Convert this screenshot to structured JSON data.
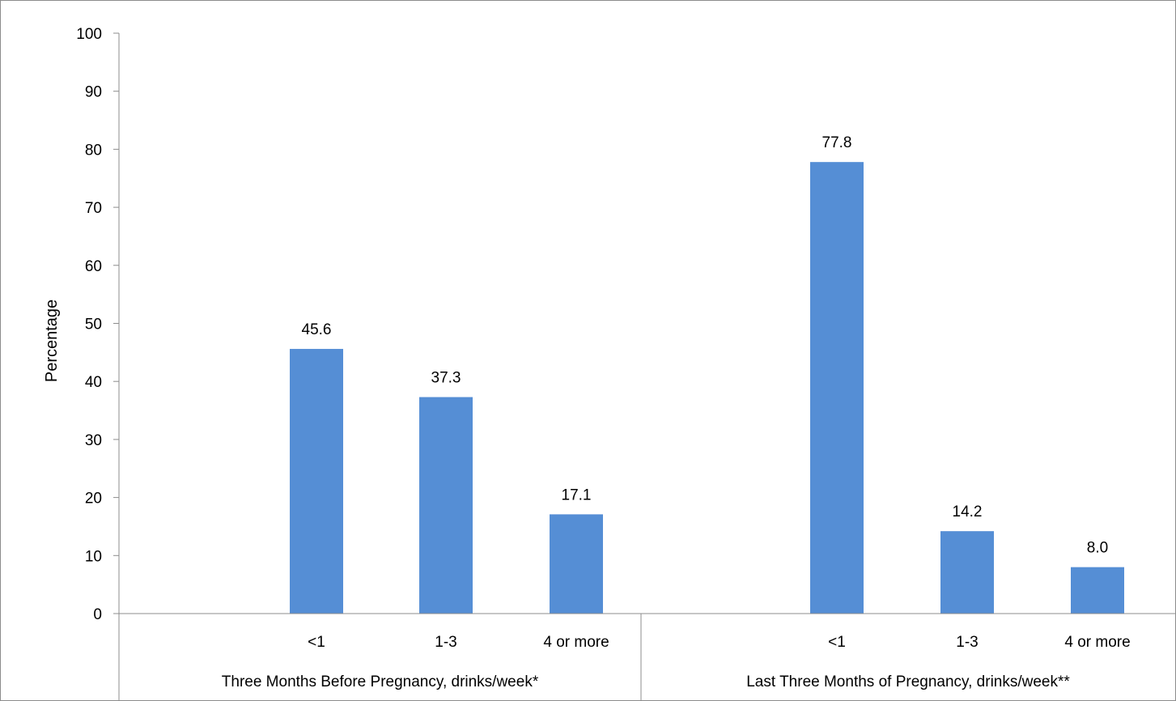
{
  "chart_data": {
    "type": "bar",
    "title": "",
    "xlabel": "",
    "ylabel": "Percentage",
    "ylim": [
      0,
      100
    ],
    "yticks": [
      0,
      10,
      20,
      30,
      40,
      50,
      60,
      70,
      80,
      90,
      100
    ],
    "grid": false,
    "legend": "none",
    "bar_color": "#558ed5",
    "groups": [
      {
        "label": "Three Months Before Pregnancy, drinks/week*",
        "categories": [
          "<1",
          "1-3",
          "4 or more"
        ],
        "values": [
          45.6,
          37.3,
          17.1
        ],
        "value_labels": [
          "45.6",
          "37.3",
          "17.1"
        ]
      },
      {
        "label": "Last Three Months of Pregnancy, drinks/week**",
        "categories": [
          "<1",
          "1-3",
          "4 or more"
        ],
        "values": [
          77.8,
          14.2,
          8.0
        ],
        "value_labels": [
          "77.8",
          "14.2",
          "8.0"
        ]
      }
    ]
  }
}
